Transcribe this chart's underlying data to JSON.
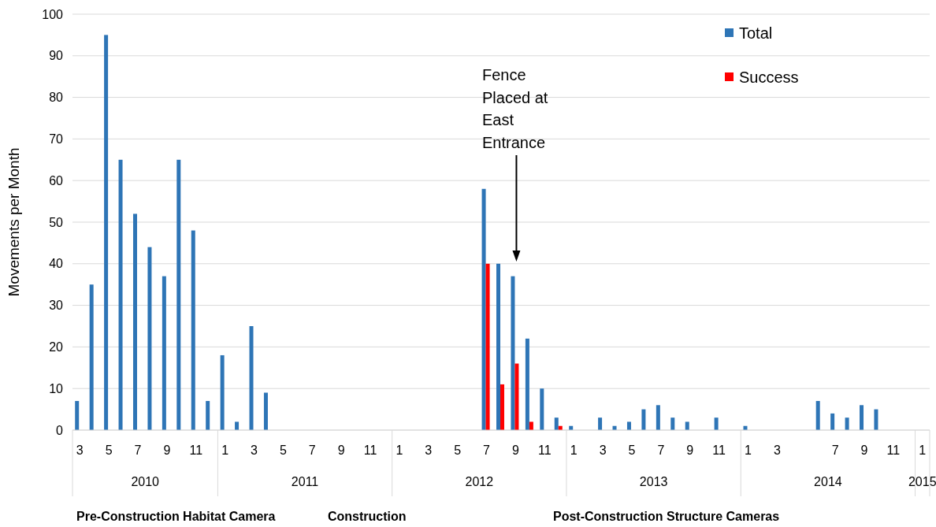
{
  "chart_data": {
    "type": "bar",
    "ylabel": "Movements per Month",
    "categories": [
      "3",
      null,
      "5",
      null,
      "7",
      null,
      "9",
      null,
      "11",
      null,
      "1",
      null,
      "3",
      null,
      "5",
      null,
      "7",
      null,
      "9",
      null,
      "11",
      null,
      "1",
      null,
      "3",
      null,
      "5",
      null,
      "7",
      null,
      "9",
      null,
      "11",
      null,
      "1",
      null,
      "3",
      null,
      "5",
      null,
      "7",
      null,
      "9",
      null,
      "11",
      null,
      "1",
      null,
      "3",
      null,
      null,
      null,
      "7",
      null,
      "9",
      null,
      "11",
      null,
      "1"
    ],
    "series": [
      {
        "name": "Total",
        "color": "#2e75b6",
        "values": [
          7,
          35,
          95,
          65,
          52,
          44,
          37,
          65,
          48,
          7,
          18,
          2,
          25,
          9,
          0,
          0,
          0,
          0,
          0,
          0,
          0,
          0,
          0,
          0,
          0,
          0,
          0,
          0,
          58,
          40,
          37,
          22,
          10,
          3,
          1,
          0,
          3,
          1,
          2,
          5,
          6,
          3,
          2,
          0,
          3,
          0,
          1,
          0,
          0,
          0,
          0,
          7,
          4,
          3,
          6,
          5,
          0,
          0,
          0
        ]
      },
      {
        "name": "Success",
        "color": "#ff0000",
        "values": [
          null,
          null,
          null,
          null,
          null,
          null,
          null,
          null,
          null,
          null,
          null,
          null,
          null,
          null,
          null,
          null,
          null,
          null,
          null,
          null,
          null,
          null,
          null,
          null,
          null,
          null,
          null,
          null,
          40,
          11,
          16,
          2,
          0,
          1,
          null,
          null,
          null,
          null,
          null,
          null,
          null,
          null,
          null,
          null,
          null,
          null,
          null,
          null,
          null,
          null,
          null,
          null,
          null,
          null,
          null,
          null,
          null,
          null,
          null
        ]
      }
    ],
    "ylim": [
      0,
      100
    ],
    "yticks": [
      0,
      10,
      20,
      30,
      40,
      50,
      60,
      70,
      80,
      90,
      100
    ],
    "grid": "y",
    "legend": "top right",
    "annotations": [
      "Fence Placed at East Entrance",
      "2010",
      "2011",
      "2012",
      "2013",
      "2014",
      "2015",
      "Pre-Construction Habitat Camera",
      "Construction",
      "Post-Construction Structure Cameras"
    ]
  }
}
